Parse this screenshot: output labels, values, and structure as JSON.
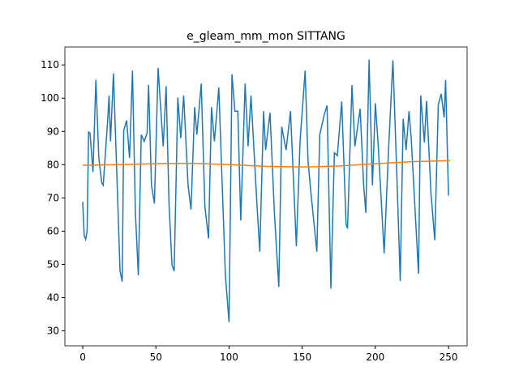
{
  "chart_data": {
    "type": "line",
    "title": "e_gleam_mm_mon SITTANG",
    "xlim": [
      -12.2,
      262.7
    ],
    "ylim": [
      25.5,
      115.4
    ],
    "xticks": [
      0,
      50,
      100,
      150,
      200,
      250
    ],
    "yticks": [
      30,
      40,
      50,
      60,
      70,
      80,
      90,
      100,
      110
    ],
    "series": [
      {
        "color": "#1f77b4",
        "x": [
          0,
          1,
          2,
          3,
          4,
          5,
          7,
          9,
          11,
          13,
          14,
          17,
          18,
          19,
          21,
          24,
          25.5,
          27,
          28,
          30,
          32,
          34,
          36,
          38,
          40,
          42,
          44,
          45,
          47,
          49,
          51.5,
          55,
          57,
          59,
          61,
          62.5,
          65,
          67,
          69,
          72,
          74,
          76.5,
          78,
          81,
          83.5,
          86,
          88,
          90,
          93,
          96,
          97.5,
          100,
          102,
          104,
          106,
          108,
          111,
          113,
          115,
          119,
          121,
          123.6,
          125,
          128,
          131,
          134,
          136,
          139,
          142,
          146,
          148.5,
          152,
          154,
          156,
          160,
          162,
          165,
          167,
          169.6,
          172,
          174,
          177,
          180,
          181,
          184,
          186,
          189.6,
          192,
          193.5,
          195.7,
          198,
          200,
          202,
          206,
          209,
          212,
          215,
          217,
          219,
          221,
          223,
          224.5,
          229.5,
          231,
          233.5,
          235,
          238,
          240.6,
          243,
          245,
          247,
          248,
          250
        ],
        "values": [
          68.8,
          58.7,
          57.5,
          60,
          89.8,
          89.5,
          77.8,
          105.5,
          82,
          74.5,
          73.8,
          93,
          100.8,
          87,
          107.4,
          68,
          48,
          44.8,
          90.2,
          93.3,
          82,
          108.3,
          65.5,
          46.7,
          89,
          87,
          89.5,
          104,
          73.8,
          68.3,
          109.1,
          85.5,
          103.6,
          68,
          49.8,
          48,
          100.2,
          88,
          100.8,
          73.8,
          66.5,
          97.3,
          89,
          104.4,
          67.4,
          57.8,
          97.3,
          87,
          103.2,
          65.5,
          46.7,
          32.6,
          107.2,
          96.1,
          96.1,
          63.2,
          104.4,
          85.5,
          100.8,
          68.6,
          53.8,
          96.1,
          84.4,
          95.6,
          65.5,
          43.2,
          91.4,
          84.4,
          96.1,
          55.4,
          86.7,
          108.3,
          81,
          71.4,
          53.8,
          89,
          94.9,
          97.8,
          42.7,
          83.6,
          82.7,
          99,
          62,
          60.8,
          103.9,
          85.5,
          96.8,
          73.8,
          65.5,
          111.6,
          73.8,
          98.5,
          85.5,
          53.3,
          84.4,
          111.4,
          72.6,
          45,
          93.8,
          84.4,
          96.1,
          87.9,
          47.2,
          100.8,
          86.7,
          99.2,
          71.4,
          57.3,
          98,
          101.3,
          94.2,
          105.5,
          70.7
        ]
      },
      {
        "color": "#ff7f0e",
        "x": [
          0,
          25,
          50,
          75,
          100,
          125,
          150,
          175,
          200,
          225,
          251
        ],
        "values": [
          79.8,
          80,
          80.3,
          80.4,
          80,
          79.5,
          79.3,
          79.6,
          80.3,
          80.9,
          81.2
        ]
      }
    ]
  }
}
